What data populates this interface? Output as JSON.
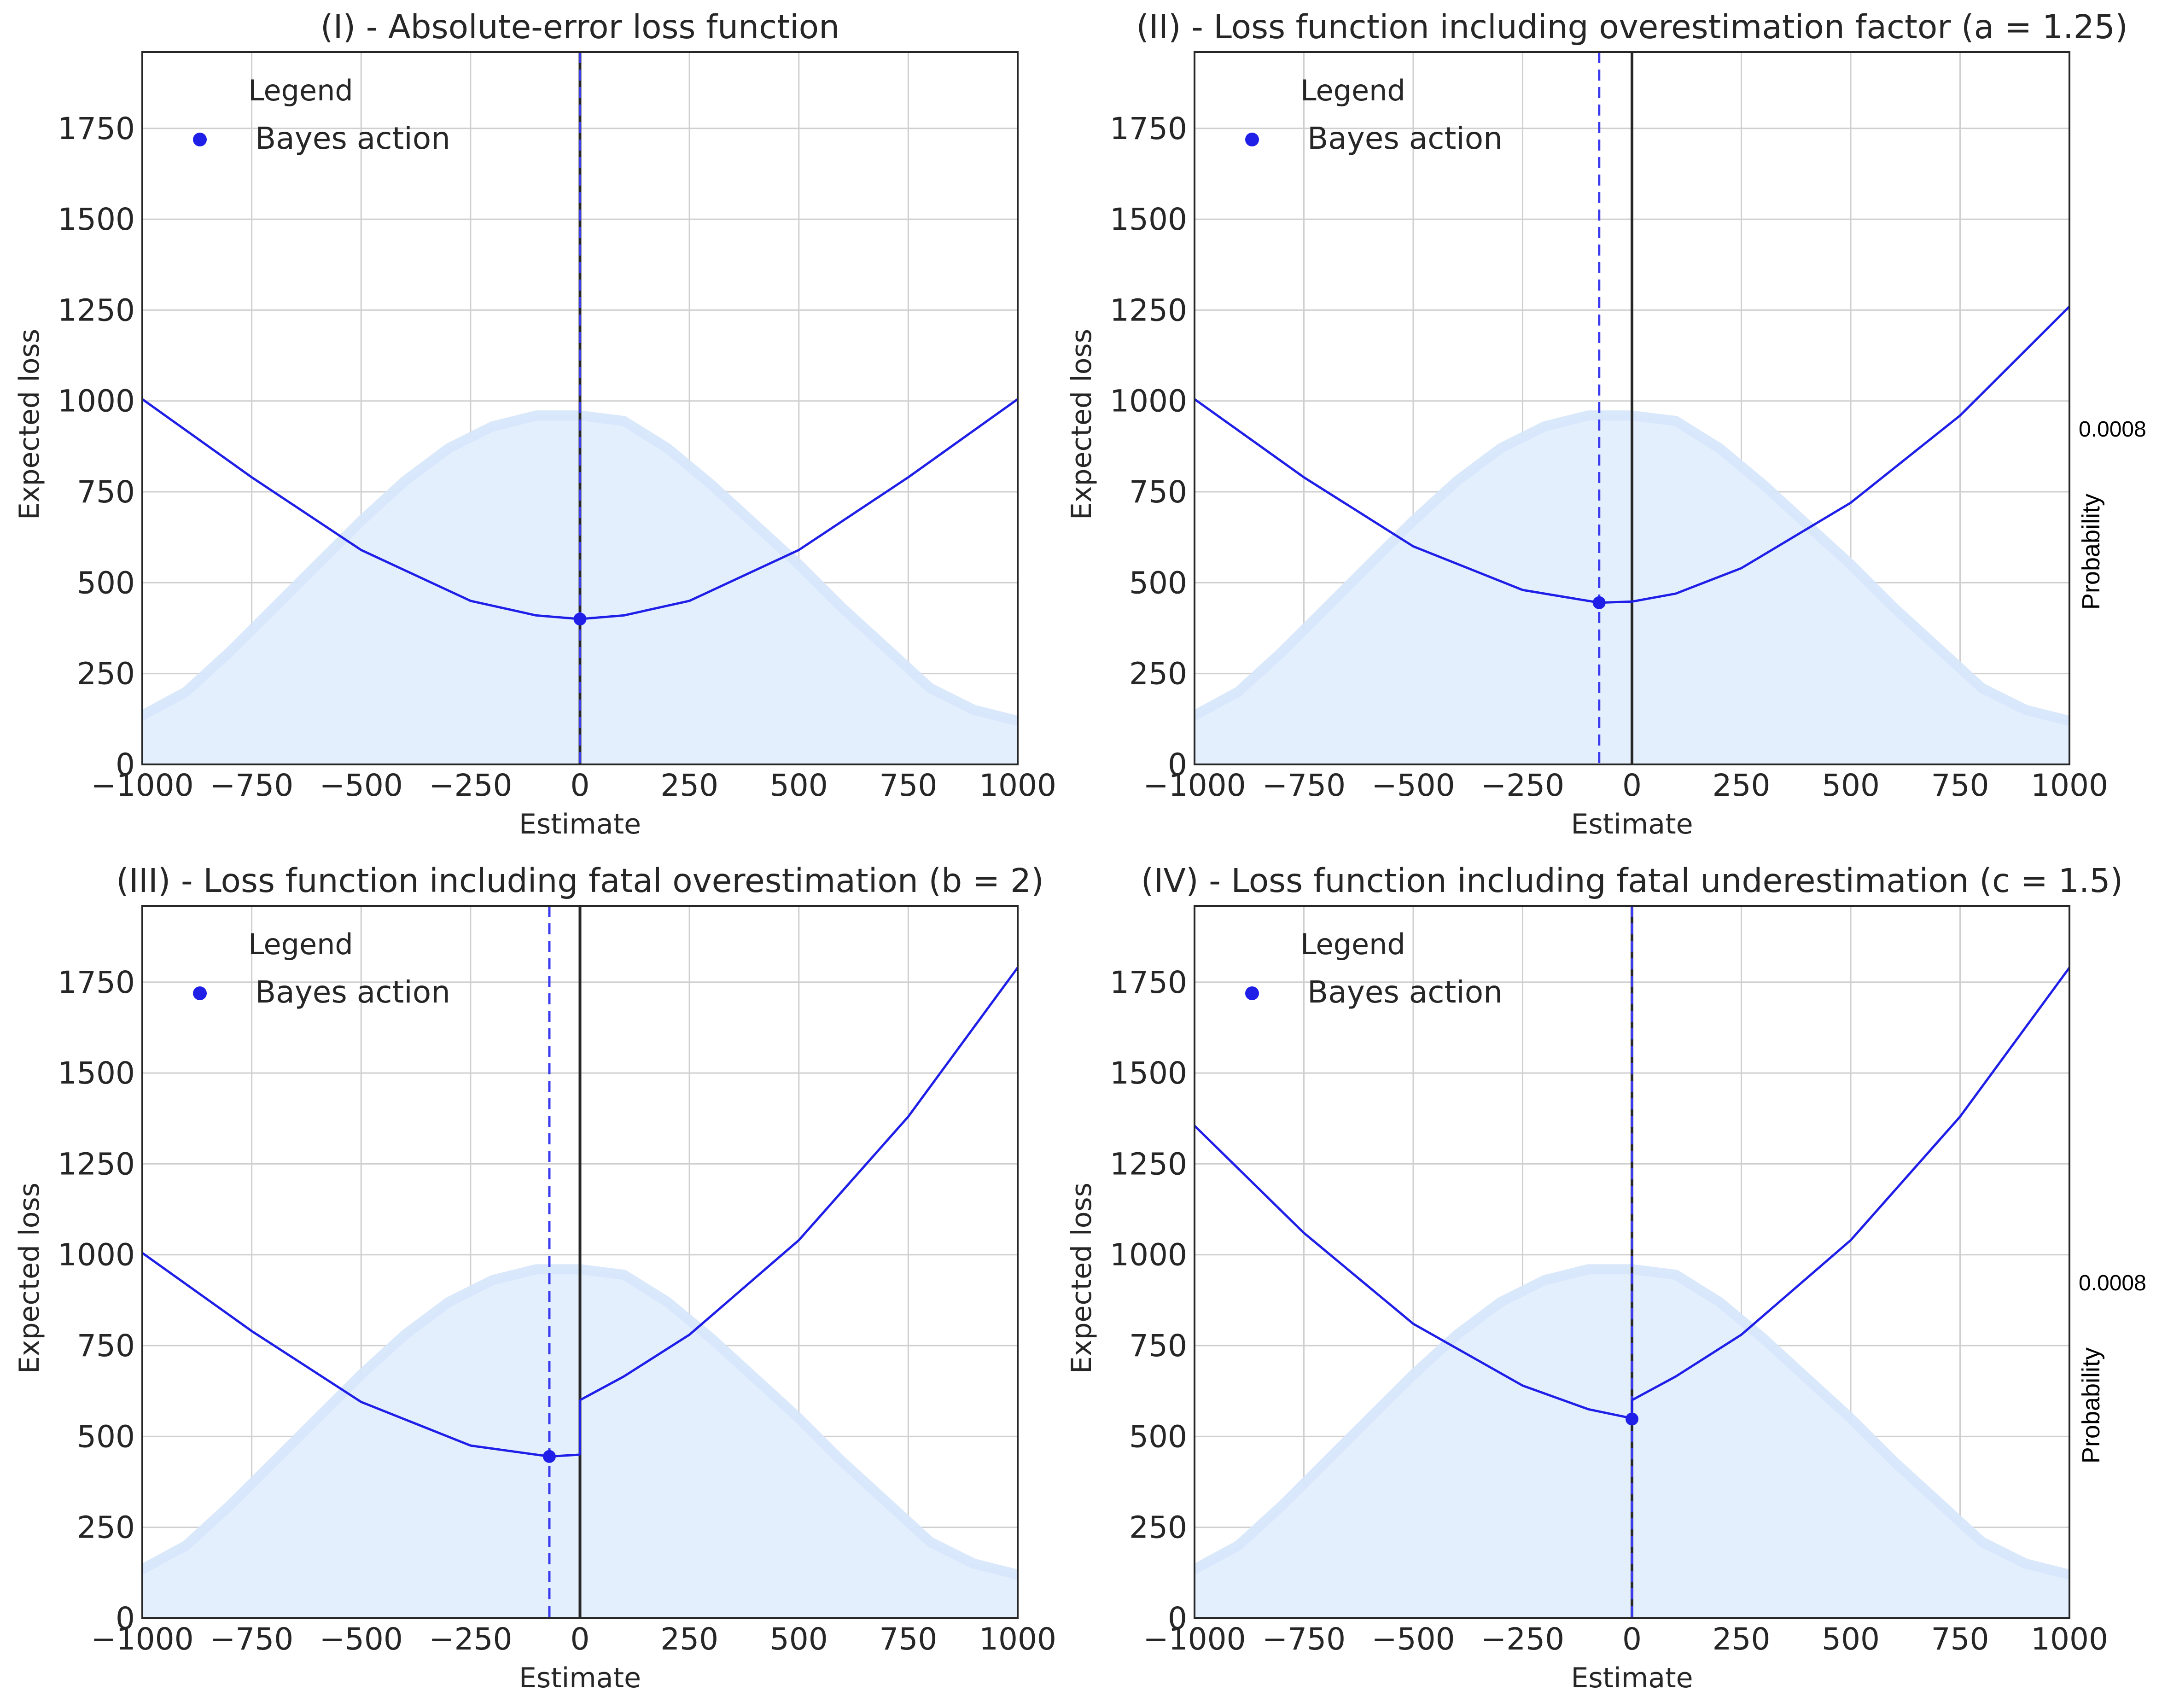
{
  "chart_data": [
    {
      "type": "line",
      "title": "(I) - Absolute-error loss function",
      "xlabel": "Estimate",
      "ylabel": "Expected loss",
      "xlim": [
        -1000,
        1000
      ],
      "ylim": [
        0,
        1960
      ],
      "x_ticks": [
        "−1000",
        "−750",
        "−500",
        "−250",
        "0",
        "250",
        "500",
        "750",
        "1000"
      ],
      "y_ticks": [
        "0",
        "250",
        "500",
        "750",
        "1000",
        "1250",
        "1500",
        "1750"
      ],
      "legend": {
        "title": "Legend",
        "entries": [
          "Bayes action"
        ],
        "placement": "upper-left"
      },
      "loss_curve": {
        "color": "#1f1fe8",
        "x": [
          -1000,
          -750,
          -500,
          -250,
          -100,
          0,
          100,
          250,
          500,
          750,
          1000
        ],
        "y": [
          1005,
          790,
          590,
          450,
          410,
          400,
          410,
          450,
          590,
          790,
          1005
        ]
      },
      "bayes_action": {
        "x": 0,
        "y": 400,
        "color": "#1f1fe8"
      },
      "truth_line_x": 0,
      "density": {
        "color": "#d6e6fb",
        "x": [
          -1000,
          -900,
          -800,
          -700,
          -600,
          -500,
          -400,
          -300,
          -200,
          -100,
          0,
          100,
          200,
          300,
          400,
          500,
          600,
          700,
          800,
          900,
          1000
        ],
        "y": [
          135,
          200,
          310,
          430,
          550,
          670,
          780,
          870,
          930,
          960,
          960,
          945,
          870,
          770,
          660,
          550,
          430,
          320,
          210,
          150,
          120
        ]
      },
      "grid": true
    },
    {
      "type": "line",
      "title": "(II) - Loss function including overestimation factor (a = 1.25)",
      "xlabel": "Estimate",
      "ylabel": "Expected loss",
      "y2label": "Probability",
      "y2_ticks": [
        "0.0008"
      ],
      "xlim": [
        -1000,
        1000
      ],
      "ylim": [
        0,
        1960
      ],
      "x_ticks": [
        "−1000",
        "−750",
        "−500",
        "−250",
        "0",
        "250",
        "500",
        "750",
        "1000"
      ],
      "y_ticks": [
        "0",
        "250",
        "500",
        "750",
        "1000",
        "1250",
        "1500",
        "1750"
      ],
      "legend": {
        "title": "Legend",
        "entries": [
          "Bayes action"
        ],
        "placement": "upper-left"
      },
      "loss_curve": {
        "color": "#1f1fe8",
        "x": [
          -1000,
          -750,
          -500,
          -250,
          -75,
          0,
          100,
          250,
          500,
          750,
          1000
        ],
        "y": [
          1005,
          790,
          600,
          480,
          445,
          448,
          470,
          540,
          720,
          960,
          1260
        ]
      },
      "bayes_action": {
        "x": -75,
        "y": 445,
        "color": "#1f1fe8"
      },
      "truth_line_x": 0,
      "density": {
        "color": "#d6e6fb",
        "x": [
          -1000,
          -900,
          -800,
          -700,
          -600,
          -500,
          -400,
          -300,
          -200,
          -100,
          0,
          100,
          200,
          300,
          400,
          500,
          600,
          700,
          800,
          900,
          1000
        ],
        "y": [
          135,
          200,
          310,
          430,
          550,
          670,
          780,
          870,
          930,
          960,
          960,
          945,
          870,
          770,
          660,
          550,
          430,
          320,
          210,
          150,
          120
        ]
      },
      "grid": true
    },
    {
      "type": "line",
      "title": "(III) - Loss function including fatal overestimation (b = 2)",
      "xlabel": "Estimate",
      "ylabel": "Expected loss",
      "xlim": [
        -1000,
        1000
      ],
      "ylim": [
        0,
        1960
      ],
      "x_ticks": [
        "−1000",
        "−750",
        "−500",
        "−250",
        "0",
        "250",
        "500",
        "750",
        "1000"
      ],
      "y_ticks": [
        "0",
        "250",
        "500",
        "750",
        "1000",
        "1250",
        "1500",
        "1750"
      ],
      "legend": {
        "title": "Legend",
        "entries": [
          "Bayes action"
        ],
        "placement": "upper-left"
      },
      "loss_curve_left": {
        "color": "#1f1fe8",
        "x": [
          -1000,
          -750,
          -500,
          -250,
          -70,
          0
        ],
        "y": [
          1005,
          790,
          595,
          475,
          445,
          450
        ]
      },
      "loss_curve_right": {
        "color": "#1f1fe8",
        "x": [
          0,
          100,
          250,
          500,
          750,
          1000
        ],
        "y": [
          600,
          665,
          780,
          1040,
          1380,
          1790
        ]
      },
      "bayes_action": {
        "x": -70,
        "y": 445,
        "color": "#1f1fe8"
      },
      "truth_line_x": 0,
      "density": {
        "color": "#d6e6fb",
        "x": [
          -1000,
          -900,
          -800,
          -700,
          -600,
          -500,
          -400,
          -300,
          -200,
          -100,
          0,
          100,
          200,
          300,
          400,
          500,
          600,
          700,
          800,
          900,
          1000
        ],
        "y": [
          135,
          200,
          310,
          430,
          550,
          670,
          780,
          870,
          930,
          960,
          960,
          945,
          870,
          770,
          660,
          550,
          430,
          320,
          210,
          150,
          120
        ]
      },
      "grid": true
    },
    {
      "type": "line",
      "title": "(IV) - Loss function including fatal underestimation (c = 1.5)",
      "xlabel": "Estimate",
      "ylabel": "Expected loss",
      "y2label": "Probability",
      "y2_ticks": [
        "0.0008"
      ],
      "xlim": [
        -1000,
        1000
      ],
      "ylim": [
        0,
        1960
      ],
      "x_ticks": [
        "−1000",
        "−750",
        "−500",
        "−250",
        "0",
        "250",
        "500",
        "750",
        "1000"
      ],
      "y_ticks": [
        "0",
        "250",
        "500",
        "750",
        "1000",
        "1250",
        "1500",
        "1750"
      ],
      "legend": {
        "title": "Legend",
        "entries": [
          "Bayes action"
        ],
        "placement": "upper-left"
      },
      "loss_curve_left": {
        "color": "#1f1fe8",
        "x": [
          -1000,
          -750,
          -500,
          -250,
          -100,
          0
        ],
        "y": [
          1355,
          1060,
          810,
          640,
          575,
          550
        ]
      },
      "loss_curve_right": {
        "color": "#1f1fe8",
        "x": [
          0,
          100,
          250,
          500,
          750,
          1000
        ],
        "y": [
          600,
          665,
          780,
          1040,
          1380,
          1790
        ]
      },
      "bayes_action": {
        "x": 0,
        "y": 548,
        "color": "#1f1fe8"
      },
      "truth_line_x": 0,
      "density": {
        "color": "#d6e6fb",
        "x": [
          -1000,
          -900,
          -800,
          -700,
          -600,
          -500,
          -400,
          -300,
          -200,
          -100,
          0,
          100,
          200,
          300,
          400,
          500,
          600,
          700,
          800,
          900,
          1000
        ],
        "y": [
          135,
          200,
          310,
          430,
          550,
          670,
          780,
          870,
          930,
          960,
          960,
          945,
          870,
          770,
          660,
          550,
          430,
          320,
          210,
          150,
          120
        ]
      },
      "grid": true
    }
  ]
}
